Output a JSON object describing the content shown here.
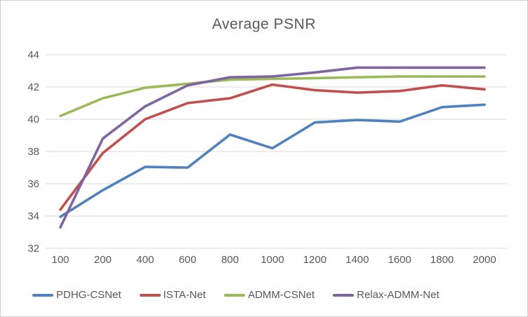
{
  "chart_data": {
    "type": "line",
    "title": "Average PSNR",
    "xlabel": "",
    "ylabel": "",
    "categories": [
      "100",
      "200",
      "400",
      "600",
      "800",
      "1000",
      "1200",
      "1400",
      "1600",
      "1800",
      "2000"
    ],
    "series": [
      {
        "name": "PDHG-CSNet",
        "color": "#4F81BD",
        "values": [
          33.95,
          35.6,
          37.05,
          37.0,
          39.05,
          38.2,
          39.8,
          39.95,
          39.85,
          40.75,
          40.9
        ]
      },
      {
        "name": "ISTA-Net",
        "color": "#C0504D",
        "values": [
          34.4,
          37.9,
          40.0,
          41.0,
          41.3,
          42.15,
          41.8,
          41.65,
          41.75,
          42.1,
          41.85
        ]
      },
      {
        "name": "ADMM-CSNet",
        "color": "#9BBB59",
        "values": [
          40.2,
          41.3,
          41.95,
          42.2,
          42.45,
          42.5,
          42.55,
          42.6,
          42.65,
          42.65,
          42.65
        ]
      },
      {
        "name": "Relax-ADMM-Net",
        "color": "#8064A2",
        "values": [
          33.3,
          38.8,
          40.8,
          42.1,
          42.6,
          42.65,
          42.9,
          43.2,
          43.2,
          43.2,
          43.2
        ]
      }
    ],
    "y_ticks": [
      "32",
      "34",
      "36",
      "38",
      "40",
      "42",
      "44"
    ],
    "ylim": [
      32,
      44
    ],
    "grid": true,
    "legend_position": "bottom",
    "colors": {
      "axis_text": "#595959",
      "gridline": "#d9d9d9",
      "title_text": "#595959",
      "frame_border": "#cfcfcf",
      "background": "#ffffff"
    }
  }
}
